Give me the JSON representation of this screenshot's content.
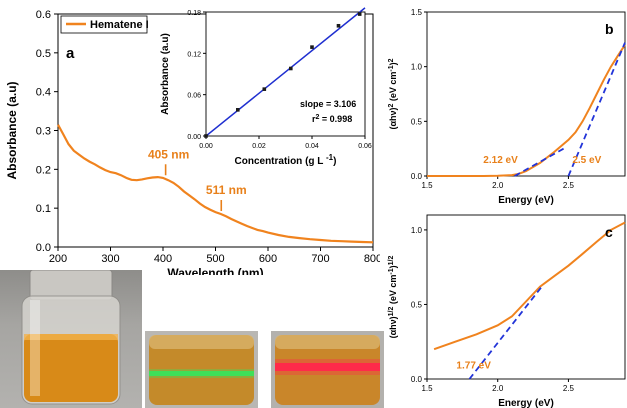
{
  "colors": {
    "absorbance_line": "#f0831e",
    "inset_line": "#1f2fd0",
    "inset_points": "#1a1a1a",
    "fit_dashed": "#2234d8",
    "annotation_orange": "#e8801a",
    "laser_green": "#3fe05a",
    "laser_red": "#ff2a4a"
  },
  "panel_labels": {
    "a": "a",
    "b": "b",
    "c": "c"
  },
  "chart_data": [
    {
      "id": "main_absorbance",
      "type": "line",
      "legend": "Hematene I",
      "legend_position": "top-left",
      "xlabel": "Wavelength (nm)",
      "ylabel": "Absorbance (a.u)",
      "xlim": [
        200,
        800
      ],
      "ylim": [
        0.0,
        0.6
      ],
      "xticks": [
        "200",
        "300",
        "400",
        "500",
        "600",
        "700",
        "800"
      ],
      "yticks": [
        "0.0",
        "0.1",
        "0.2",
        "0.3",
        "0.4",
        "0.5",
        "0.6"
      ],
      "x": [
        200,
        210,
        220,
        230,
        240,
        250,
        260,
        270,
        280,
        290,
        300,
        310,
        320,
        330,
        340,
        350,
        360,
        370,
        380,
        390,
        400,
        410,
        420,
        430,
        440,
        450,
        460,
        470,
        480,
        490,
        500,
        510,
        520,
        530,
        540,
        550,
        560,
        570,
        580,
        590,
        600,
        620,
        640,
        660,
        680,
        700,
        720,
        740,
        760,
        780,
        800
      ],
      "y": [
        0.315,
        0.29,
        0.265,
        0.248,
        0.238,
        0.228,
        0.22,
        0.213,
        0.205,
        0.198,
        0.193,
        0.19,
        0.185,
        0.178,
        0.173,
        0.172,
        0.174,
        0.177,
        0.179,
        0.18,
        0.178,
        0.172,
        0.165,
        0.155,
        0.143,
        0.133,
        0.123,
        0.112,
        0.103,
        0.096,
        0.09,
        0.085,
        0.079,
        0.072,
        0.066,
        0.06,
        0.054,
        0.049,
        0.044,
        0.041,
        0.037,
        0.031,
        0.026,
        0.023,
        0.02,
        0.018,
        0.016,
        0.015,
        0.014,
        0.013,
        0.012
      ],
      "annotations": [
        {
          "text": "405 nm",
          "x": 405,
          "y": 0.177
        },
        {
          "text": "511 nm",
          "x": 511,
          "y": 0.085
        }
      ]
    },
    {
      "id": "inset_calibration",
      "type": "scatter",
      "xlabel": "Concentration (g L",
      "xlabel_sup": "-1",
      "xlabel_close": ")",
      "ylabel": "Absorbance (a.u)",
      "xlim": [
        0,
        0.06
      ],
      "ylim": [
        0,
        0.18
      ],
      "xticks": [
        "0.00",
        "0.02",
        "0.04",
        "0.06"
      ],
      "yticks": [
        "0.00",
        "0.06",
        "0.12",
        "0.18"
      ],
      "x": [
        0,
        0.012,
        0.022,
        0.032,
        0.04,
        0.05,
        0.058
      ],
      "y": [
        0,
        0.038,
        0.068,
        0.098,
        0.129,
        0.16,
        0.177
      ],
      "fit": {
        "x": [
          0,
          0.06
        ],
        "y": [
          0,
          0.186
        ]
      },
      "slope_text": "slope = 3.106",
      "r2_text_prefix": "r",
      "r2_sup": "2",
      "r2_text_suffix": " = 0.998"
    },
    {
      "id": "panel_b",
      "type": "line",
      "xlabel": "Energy (eV)",
      "ylabel_parts": {
        "pre": "(αhν)",
        "sup1": "2",
        "mid": " (eV cm",
        "sup2": "-1",
        "post": ")",
        "sup3": "2"
      },
      "xlim": [
        1.5,
        2.9
      ],
      "ylim": [
        0.0,
        1.5
      ],
      "xticks": [
        "1.5",
        "2.0",
        "2.5"
      ],
      "yticks": [
        "0.0",
        "0.5",
        "1.0",
        "1.5"
      ],
      "x": [
        1.5,
        1.7,
        1.9,
        2.0,
        2.1,
        2.15,
        2.2,
        2.3,
        2.4,
        2.5,
        2.55,
        2.6,
        2.65,
        2.7,
        2.75,
        2.8,
        2.85,
        2.9
      ],
      "y": [
        0.0,
        0.0,
        0.0,
        0.002,
        0.008,
        0.02,
        0.045,
        0.12,
        0.22,
        0.33,
        0.4,
        0.5,
        0.62,
        0.75,
        0.88,
        1.0,
        1.1,
        1.2
      ],
      "fits": [
        {
          "x": [
            2.12,
            2.48
          ],
          "y": [
            0.0,
            0.26
          ]
        },
        {
          "x": [
            2.5,
            2.9
          ],
          "y": [
            0.0,
            1.22
          ]
        }
      ],
      "annotations": [
        {
          "text": "2.12 eV",
          "x": 2.02,
          "y": 0.12
        },
        {
          "text": "2.5 eV",
          "x": 2.63,
          "y": 0.12
        }
      ]
    },
    {
      "id": "panel_c",
      "type": "line",
      "xlabel": "Energy (eV)",
      "ylabel_parts": {
        "pre": "(αhν)",
        "sup1": "1/2",
        "mid": " (eV cm",
        "sup2": "-1",
        "post": ")",
        "sup3": "1/2"
      },
      "xlim": [
        1.5,
        2.9
      ],
      "ylim": [
        0.0,
        1.1
      ],
      "xticks": [
        "1.5",
        "2.0",
        "2.5"
      ],
      "yticks": [
        "0.0",
        "0.5",
        "1.0"
      ],
      "x": [
        1.55,
        1.7,
        1.85,
        2.0,
        2.1,
        2.2,
        2.3,
        2.4,
        2.5,
        2.6,
        2.7,
        2.8,
        2.9
      ],
      "y": [
        0.2,
        0.25,
        0.3,
        0.36,
        0.42,
        0.52,
        0.62,
        0.69,
        0.76,
        0.84,
        0.92,
        1.0,
        1.05
      ],
      "fit": {
        "x": [
          1.8,
          2.32
        ],
        "y": [
          0.0,
          0.63
        ]
      },
      "annotations": [
        {
          "text": "1.77 eV",
          "x": 1.83,
          "y": 0.07
        }
      ]
    }
  ]
}
